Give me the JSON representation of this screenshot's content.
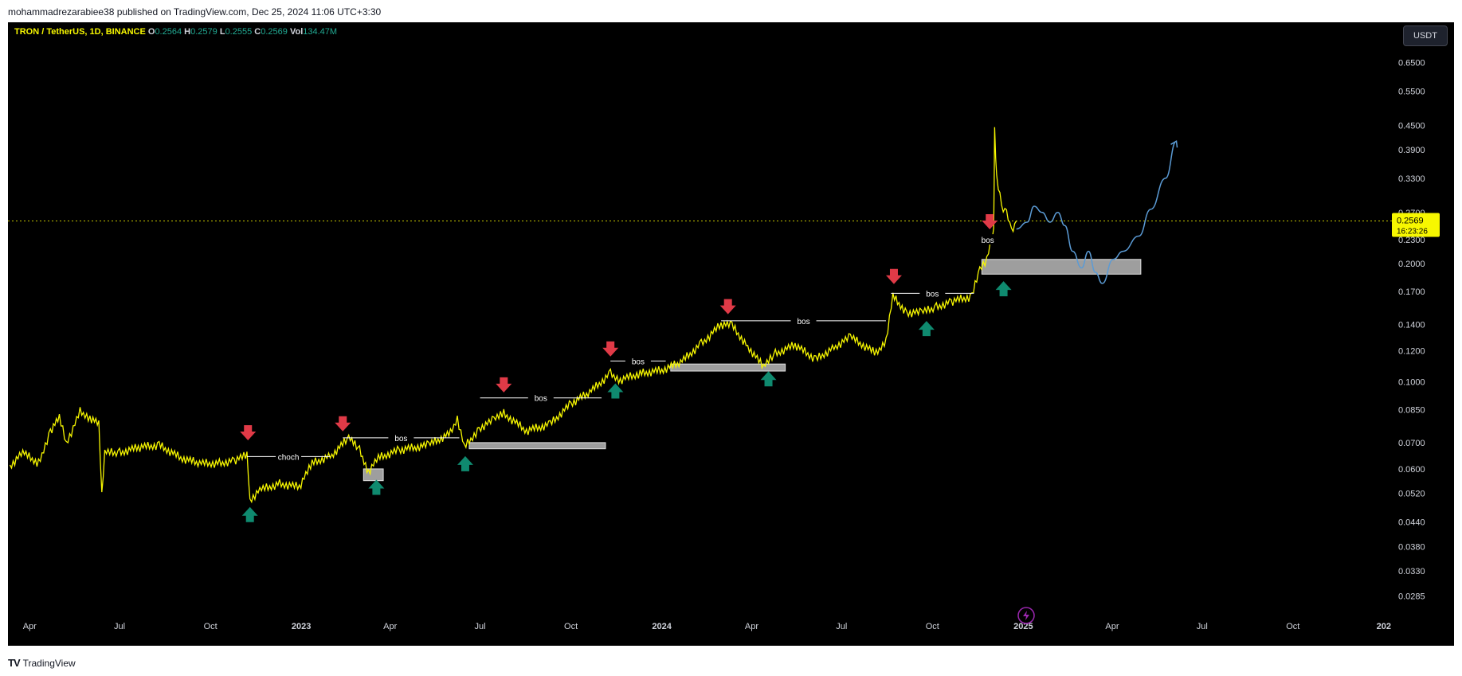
{
  "header": {
    "published": "mohammadrezarabiee38 published on TradingView.com, Dec 25, 2024 11:06 UTC+3:30"
  },
  "legend": {
    "symbol": "TRON / TetherUS, 1D, BINANCE",
    "open_key": "O",
    "open": "0.2564",
    "high_key": "H",
    "high": "0.2579",
    "low_key": "L",
    "low": "0.2555",
    "close_key": "C",
    "close": "0.2569",
    "vol_key": "Vol",
    "vol": "134.47M"
  },
  "currency_button": "USDT",
  "price_tag": {
    "price": "0.2569",
    "countdown": "16:23:26"
  },
  "footer": {
    "brand": "TradingView"
  },
  "colors": {
    "background": "#000000",
    "price_line": "#f7f700",
    "up_arrow": "#0f8a6f",
    "down_arrow": "#e03a47",
    "projection": "#5b9bd5",
    "zone": "#9e9e9e"
  },
  "chart_data": {
    "type": "line",
    "symbol": "TRXUSDT",
    "scale": "log",
    "ylim": [
      0.026,
      0.75
    ],
    "y_ticks": [
      "0.6500",
      "0.5500",
      "0.4500",
      "0.3900",
      "0.3300",
      "0.2700",
      "0.2300",
      "0.2000",
      "0.1700",
      "0.1400",
      "0.1200",
      "0.1000",
      "0.0850",
      "0.0700",
      "0.0600",
      "0.0520",
      "0.0440",
      "0.0380",
      "0.0330",
      "0.0285"
    ],
    "x_ticks": [
      "Apr",
      "Jul",
      "Oct",
      "2023",
      "Apr",
      "Jul",
      "Oct",
      "2024",
      "Apr",
      "Jul",
      "Oct",
      "2025",
      "Apr",
      "Jul",
      "Oct",
      "202"
    ],
    "x_tick_dates": [
      "2022-04-01",
      "2022-07-01",
      "2022-10-01",
      "2023-01-01",
      "2023-04-01",
      "2023-07-01",
      "2023-10-01",
      "2024-01-01",
      "2024-04-01",
      "2024-07-01",
      "2024-10-01",
      "2025-01-01",
      "2025-04-01",
      "2025-07-01",
      "2025-10-01",
      "2026-01-01"
    ],
    "xlim": [
      "2022-03-10",
      "2026-01-10"
    ],
    "last_price": 0.2569,
    "series": [
      {
        "values": [
          {
            "x": "2022-03-12",
            "y": 0.061
          },
          {
            "x": "2022-03-25",
            "y": 0.066
          },
          {
            "x": "2022-04-10",
            "y": 0.062
          },
          {
            "x": "2022-04-22",
            "y": 0.075
          },
          {
            "x": "2022-05-01",
            "y": 0.081
          },
          {
            "x": "2022-05-08",
            "y": 0.07
          },
          {
            "x": "2022-05-15",
            "y": 0.076
          },
          {
            "x": "2022-05-22",
            "y": 0.084
          },
          {
            "x": "2022-06-01",
            "y": 0.081
          },
          {
            "x": "2022-06-10",
            "y": 0.078
          },
          {
            "x": "2022-06-13",
            "y": 0.052
          },
          {
            "x": "2022-06-16",
            "y": 0.066
          },
          {
            "x": "2022-07-01",
            "y": 0.066
          },
          {
            "x": "2022-07-20",
            "y": 0.068
          },
          {
            "x": "2022-08-10",
            "y": 0.069
          },
          {
            "x": "2022-09-01",
            "y": 0.064
          },
          {
            "x": "2022-09-20",
            "y": 0.062
          },
          {
            "x": "2022-10-10",
            "y": 0.062
          },
          {
            "x": "2022-10-25",
            "y": 0.063
          },
          {
            "x": "2022-11-07",
            "y": 0.065
          },
          {
            "x": "2022-11-10",
            "y": 0.05
          },
          {
            "x": "2022-11-20",
            "y": 0.053
          },
          {
            "x": "2022-12-10",
            "y": 0.055
          },
          {
            "x": "2022-12-30",
            "y": 0.054
          },
          {
            "x": "2023-01-12",
            "y": 0.062
          },
          {
            "x": "2023-02-01",
            "y": 0.065
          },
          {
            "x": "2023-02-18",
            "y": 0.072
          },
          {
            "x": "2023-03-01",
            "y": 0.067
          },
          {
            "x": "2023-03-10",
            "y": 0.059
          },
          {
            "x": "2023-03-20",
            "y": 0.064
          },
          {
            "x": "2023-04-10",
            "y": 0.067
          },
          {
            "x": "2023-05-10",
            "y": 0.069
          },
          {
            "x": "2023-06-01",
            "y": 0.074
          },
          {
            "x": "2023-06-08",
            "y": 0.081
          },
          {
            "x": "2023-06-15",
            "y": 0.068
          },
          {
            "x": "2023-06-30",
            "y": 0.076
          },
          {
            "x": "2023-07-15",
            "y": 0.08
          },
          {
            "x": "2023-07-25",
            "y": 0.083
          },
          {
            "x": "2023-08-17",
            "y": 0.075
          },
          {
            "x": "2023-09-10",
            "y": 0.078
          },
          {
            "x": "2023-10-01",
            "y": 0.088
          },
          {
            "x": "2023-10-20",
            "y": 0.094
          },
          {
            "x": "2023-11-10",
            "y": 0.105
          },
          {
            "x": "2023-11-20",
            "y": 0.101
          },
          {
            "x": "2023-12-10",
            "y": 0.105
          },
          {
            "x": "2024-01-01",
            "y": 0.107
          },
          {
            "x": "2024-01-20",
            "y": 0.112
          },
          {
            "x": "2024-02-10",
            "y": 0.125
          },
          {
            "x": "2024-03-01",
            "y": 0.14
          },
          {
            "x": "2024-03-12",
            "y": 0.139
          },
          {
            "x": "2024-03-28",
            "y": 0.123
          },
          {
            "x": "2024-04-13",
            "y": 0.109
          },
          {
            "x": "2024-04-25",
            "y": 0.118
          },
          {
            "x": "2024-05-15",
            "y": 0.124
          },
          {
            "x": "2024-06-05",
            "y": 0.114
          },
          {
            "x": "2024-06-25",
            "y": 0.123
          },
          {
            "x": "2024-07-10",
            "y": 0.13
          },
          {
            "x": "2024-08-05",
            "y": 0.118
          },
          {
            "x": "2024-08-15",
            "y": 0.128
          },
          {
            "x": "2024-08-22",
            "y": 0.165
          },
          {
            "x": "2024-09-05",
            "y": 0.15
          },
          {
            "x": "2024-09-20",
            "y": 0.15
          },
          {
            "x": "2024-10-05",
            "y": 0.155
          },
          {
            "x": "2024-10-20",
            "y": 0.16
          },
          {
            "x": "2024-11-10",
            "y": 0.165
          },
          {
            "x": "2024-11-18",
            "y": 0.195
          },
          {
            "x": "2024-11-25",
            "y": 0.205
          },
          {
            "x": "2024-12-02",
            "y": 0.24
          },
          {
            "x": "2024-12-03",
            "y": 0.44
          },
          {
            "x": "2024-12-05",
            "y": 0.33
          },
          {
            "x": "2024-12-10",
            "y": 0.28
          },
          {
            "x": "2024-12-15",
            "y": 0.27
          },
          {
            "x": "2024-12-20",
            "y": 0.24
          },
          {
            "x": "2024-12-25",
            "y": 0.2569
          }
        ]
      }
    ],
    "annotations": [
      {
        "label": "choch",
        "y": 0.0645,
        "x1": "2022-11-07",
        "x2": "2023-01-30"
      },
      {
        "label": "bos",
        "y": 0.072,
        "x1": "2023-02-12",
        "x2": "2023-06-10"
      },
      {
        "label": "bos",
        "y": 0.091,
        "x1": "2023-07-01",
        "x2": "2023-11-01"
      },
      {
        "label": "bos",
        "y": 0.113,
        "x1": "2023-11-10",
        "x2": "2024-01-05"
      },
      {
        "label": "bos",
        "y": 0.143,
        "x1": "2024-03-01",
        "x2": "2024-08-15"
      },
      {
        "label": "bos",
        "y": 0.168,
        "x1": "2024-08-20",
        "x2": "2024-11-12"
      },
      {
        "label": "bos",
        "y": 0.23,
        "x1": "2024-11-20",
        "x2": "2024-12-02"
      }
    ],
    "zones": [
      {
        "x1": "2023-03-05",
        "x2": "2023-03-25",
        "y_top": 0.06,
        "y_bottom": 0.056
      },
      {
        "x1": "2023-06-20",
        "x2": "2023-11-05",
        "y_top": 0.07,
        "y_bottom": 0.0675
      },
      {
        "x1": "2024-01-10",
        "x2": "2024-05-05",
        "y_top": 0.111,
        "y_bottom": 0.1065
      },
      {
        "x1": "2024-11-20",
        "x2": "2025-04-30",
        "y_top": 0.205,
        "y_bottom": 0.188
      }
    ],
    "down_arrows": [
      {
        "x": "2022-11-08",
        "y": 0.074
      },
      {
        "x": "2023-02-12",
        "y": 0.078
      },
      {
        "x": "2023-07-25",
        "y": 0.098
      },
      {
        "x": "2023-11-10",
        "y": 0.121
      },
      {
        "x": "2024-03-08",
        "y": 0.155
      },
      {
        "x": "2024-08-23",
        "y": 0.185
      },
      {
        "x": "2024-11-28",
        "y": 0.255
      }
    ],
    "up_arrows": [
      {
        "x": "2022-11-10",
        "y": 0.046
      },
      {
        "x": "2023-03-18",
        "y": 0.054
      },
      {
        "x": "2023-06-16",
        "y": 0.062
      },
      {
        "x": "2023-11-15",
        "y": 0.095
      },
      {
        "x": "2024-04-18",
        "y": 0.102
      },
      {
        "x": "2024-09-25",
        "y": 0.137
      },
      {
        "x": "2024-12-12",
        "y": 0.173
      }
    ],
    "projection": [
      {
        "x": "2024-12-25",
        "y": 0.245
      },
      {
        "x": "2025-01-05",
        "y": 0.255
      },
      {
        "x": "2025-01-12",
        "y": 0.28
      },
      {
        "x": "2025-01-20",
        "y": 0.27
      },
      {
        "x": "2025-01-28",
        "y": 0.255
      },
      {
        "x": "2025-02-05",
        "y": 0.27
      },
      {
        "x": "2025-02-12",
        "y": 0.25
      },
      {
        "x": "2025-02-20",
        "y": 0.215
      },
      {
        "x": "2025-03-01",
        "y": 0.195
      },
      {
        "x": "2025-03-08",
        "y": 0.215
      },
      {
        "x": "2025-03-15",
        "y": 0.19
      },
      {
        "x": "2025-03-22",
        "y": 0.178
      },
      {
        "x": "2025-04-02",
        "y": 0.205
      },
      {
        "x": "2025-04-12",
        "y": 0.215
      },
      {
        "x": "2025-04-28",
        "y": 0.235
      },
      {
        "x": "2025-05-10",
        "y": 0.275
      },
      {
        "x": "2025-05-25",
        "y": 0.33
      },
      {
        "x": "2025-06-05",
        "y": 0.41
      }
    ]
  }
}
